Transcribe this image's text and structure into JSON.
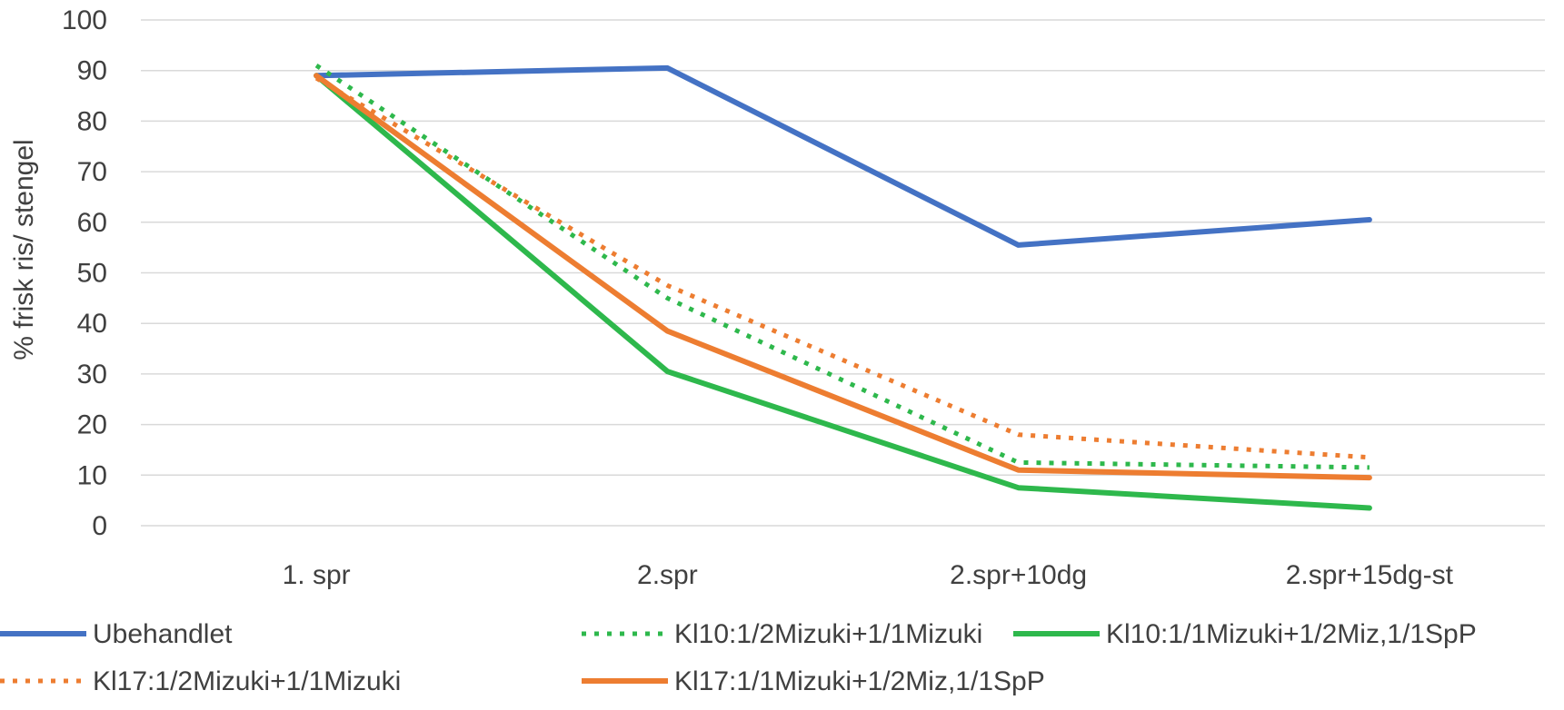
{
  "chart_data": {
    "type": "line",
    "title": "",
    "xlabel": "",
    "ylabel": "% frisk ris/ stengel",
    "ylim": [
      0,
      100
    ],
    "yticks": [
      0,
      10,
      20,
      30,
      40,
      50,
      60,
      70,
      80,
      90,
      100
    ],
    "grid": true,
    "legend_position": "bottom",
    "categories": [
      "1. spr",
      "2.spr",
      "2.spr+10dg",
      "2.spr+15dg-st"
    ],
    "series": [
      {
        "name": "Ubehandlet",
        "values": [
          89,
          90.5,
          55.5,
          60.5
        ],
        "color": "#4472C4",
        "dash": "solid"
      },
      {
        "name": "Kl10:1/2Mizuki+1/1Mizuki",
        "values": [
          91,
          45,
          12.5,
          11.5
        ],
        "color": "#2EB84C",
        "dash": "dotted"
      },
      {
        "name": "Kl10:1/1Mizuki+1/2Miz,1/1SpP",
        "values": [
          89,
          30.5,
          7.5,
          3.5
        ],
        "color": "#2EB84C",
        "dash": "solid"
      },
      {
        "name": "Kl17:1/2Mizuki+1/1Mizuki",
        "values": [
          88.5,
          47.5,
          18,
          13.5
        ],
        "color": "#ED7D31",
        "dash": "dotted"
      },
      {
        "name": "Kl17:1/1Mizuki+1/2Miz,1/1SpP",
        "values": [
          89,
          38.5,
          11,
          9.5
        ],
        "color": "#ED7D31",
        "dash": "solid"
      }
    ]
  }
}
